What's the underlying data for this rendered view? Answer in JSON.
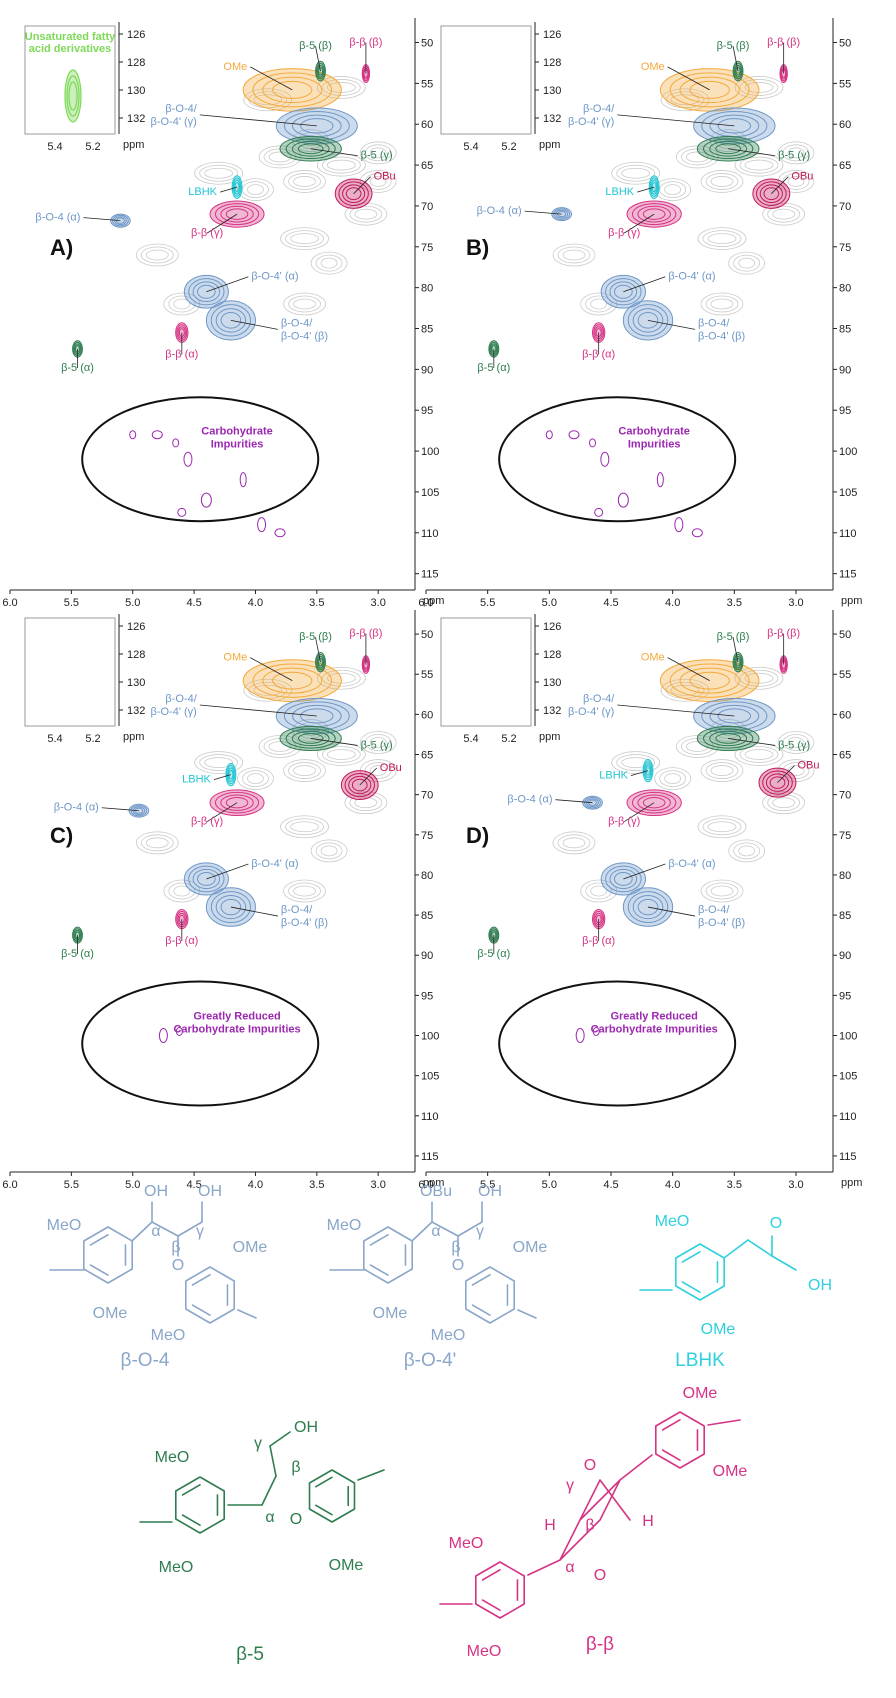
{
  "chart_data": [
    {
      "type": "heatmap",
      "panel_label": "A)",
      "x_axis": {
        "unit": "ppm",
        "ticks": [
          6.0,
          5.5,
          5.0,
          4.5,
          4.0,
          3.5,
          3.0
        ],
        "range": [
          6.0,
          2.7
        ]
      },
      "y_axis": {
        "unit": "",
        "ticks": [
          50,
          55,
          60,
          65,
          70,
          75,
          80,
          85,
          90,
          95,
          100,
          105,
          110,
          115
        ],
        "range": [
          47,
          117
        ]
      },
      "inset": {
        "x_ticks": [
          5.4,
          5.2
        ],
        "x_unit": "ppm",
        "y_ticks": [
          126,
          128,
          130,
          132
        ],
        "label": "Unsaturated fatty acid derivatives"
      },
      "region_label": "Carbohydrate Impurities",
      "annotations": [
        {
          "label": "OMe",
          "color": "#f4a93a",
          "x": 3.7,
          "y": 55.8
        },
        {
          "label": "β-5 (β)",
          "color": "#2e7d4f",
          "x": 3.47,
          "y": 53.5
        },
        {
          "label": "β-β (β)",
          "color": "#d63384",
          "x": 3.1,
          "y": 53.8
        },
        {
          "label": "β-O-4/ β-O-4' (γ)",
          "color": "#6e97c8",
          "x": 3.5,
          "y": 60.2
        },
        {
          "label": "β-5 (γ)",
          "color": "#2e7d4f",
          "x": 3.55,
          "y": 63.0
        },
        {
          "label": "LBHK",
          "color": "#22c6d3",
          "x": 4.15,
          "y": 67.7
        },
        {
          "label": "OBu",
          "color": "#c2185b",
          "x": 3.2,
          "y": 68.5
        },
        {
          "label": "β-O-4 (α)",
          "color": "#6e97c8",
          "x": 5.1,
          "y": 71.8
        },
        {
          "label": "β-β (γ)",
          "color": "#d63384",
          "x": 4.15,
          "y": 71.0
        },
        {
          "label": "β-O-4' (α)",
          "color": "#6e97c8",
          "x": 4.4,
          "y": 80.5
        },
        {
          "label": "β-O-4/ β-O-4' (β)",
          "color": "#6e97c8",
          "x": 4.2,
          "y": 84.0
        },
        {
          "label": "β-β (α)",
          "color": "#d63384",
          "x": 4.6,
          "y": 85.5
        },
        {
          "label": "β-5 (α)",
          "color": "#2e7d4f",
          "x": 5.45,
          "y": 87.5
        }
      ]
    },
    {
      "type": "heatmap",
      "panel_label": "B)",
      "x_axis": {
        "unit": "ppm",
        "ticks": [
          6.0,
          5.5,
          5.0,
          4.5,
          4.0,
          3.5,
          3.0
        ],
        "range": [
          6.0,
          2.7
        ]
      },
      "y_axis": {
        "unit": "",
        "ticks": [
          50,
          55,
          60,
          65,
          70,
          75,
          80,
          85,
          90,
          95,
          100,
          105,
          110,
          115
        ],
        "range": [
          47,
          117
        ]
      },
      "inset": {
        "x_ticks": [
          5.4,
          5.2
        ],
        "x_unit": "ppm",
        "y_ticks": [
          126,
          128,
          130,
          132
        ],
        "label": ""
      },
      "region_label": "Carbohydrate Impurities",
      "annotations": [
        {
          "label": "OMe",
          "color": "#f4a93a",
          "x": 3.7,
          "y": 55.8
        },
        {
          "label": "β-5 (β)",
          "color": "#2e7d4f",
          "x": 3.47,
          "y": 53.5
        },
        {
          "label": "β-β (β)",
          "color": "#d63384",
          "x": 3.1,
          "y": 53.8
        },
        {
          "label": "β-O-4/ β-O-4' (γ)",
          "color": "#6e97c8",
          "x": 3.5,
          "y": 60.2
        },
        {
          "label": "β-5 (γ)",
          "color": "#2e7d4f",
          "x": 3.55,
          "y": 63.0
        },
        {
          "label": "LBHK",
          "color": "#22c6d3",
          "x": 4.15,
          "y": 67.7
        },
        {
          "label": "OBu",
          "color": "#c2185b",
          "x": 3.2,
          "y": 68.5
        },
        {
          "label": "β-O-4 (α)",
          "color": "#6e97c8",
          "x": 4.9,
          "y": 71.0
        },
        {
          "label": "β-β (γ)",
          "color": "#d63384",
          "x": 4.15,
          "y": 71.0
        },
        {
          "label": "β-O-4' (α)",
          "color": "#6e97c8",
          "x": 4.4,
          "y": 80.5
        },
        {
          "label": "β-O-4/ β-O-4' (β)",
          "color": "#6e97c8",
          "x": 4.2,
          "y": 84.0
        },
        {
          "label": "β-β (α)",
          "color": "#d63384",
          "x": 4.6,
          "y": 85.5
        },
        {
          "label": "β-5 (α)",
          "color": "#2e7d4f",
          "x": 5.45,
          "y": 87.5
        }
      ]
    },
    {
      "type": "heatmap",
      "panel_label": "C)",
      "x_axis": {
        "unit": "ppm",
        "ticks": [
          6.0,
          5.5,
          5.0,
          4.5,
          4.0,
          3.5,
          3.0
        ],
        "range": [
          6.0,
          2.7
        ]
      },
      "y_axis": {
        "unit": "",
        "ticks": [
          50,
          55,
          60,
          65,
          70,
          75,
          80,
          85,
          90,
          95,
          100,
          105,
          110,
          115
        ],
        "range": [
          47,
          117
        ]
      },
      "inset": {
        "x_ticks": [
          5.4,
          5.2
        ],
        "x_unit": "ppm",
        "y_ticks": [
          126,
          128,
          130,
          132
        ],
        "label": ""
      },
      "region_label": "Greatly Reduced Carbohydrate Impurities",
      "annotations": [
        {
          "label": "OMe",
          "color": "#f4a93a",
          "x": 3.7,
          "y": 55.8
        },
        {
          "label": "β-5 (β)",
          "color": "#2e7d4f",
          "x": 3.47,
          "y": 53.5
        },
        {
          "label": "β-β (β)",
          "color": "#d63384",
          "x": 3.1,
          "y": 53.8
        },
        {
          "label": "β-O-4/ β-O-4' (γ)",
          "color": "#6e97c8",
          "x": 3.5,
          "y": 60.2
        },
        {
          "label": "β-5 (γ)",
          "color": "#2e7d4f",
          "x": 3.55,
          "y": 63.0
        },
        {
          "label": "LBHK",
          "color": "#22c6d3",
          "x": 4.2,
          "y": 67.5
        },
        {
          "label": "OBu",
          "color": "#c2185b",
          "x": 3.15,
          "y": 68.8
        },
        {
          "label": "β-O-4 (α)",
          "color": "#6e97c8",
          "x": 4.95,
          "y": 72.0
        },
        {
          "label": "β-β (γ)",
          "color": "#d63384",
          "x": 4.15,
          "y": 71.0
        },
        {
          "label": "β-O-4' (α)",
          "color": "#6e97c8",
          "x": 4.4,
          "y": 80.5
        },
        {
          "label": "β-O-4/ β-O-4' (β)",
          "color": "#6e97c8",
          "x": 4.2,
          "y": 84.0
        },
        {
          "label": "β-β (α)",
          "color": "#d63384",
          "x": 4.6,
          "y": 85.5
        },
        {
          "label": "β-5 (α)",
          "color": "#2e7d4f",
          "x": 5.45,
          "y": 87.5
        }
      ]
    },
    {
      "type": "heatmap",
      "panel_label": "D)",
      "x_axis": {
        "unit": "ppm",
        "ticks": [
          6.0,
          5.5,
          5.0,
          4.5,
          4.0,
          3.5,
          3.0
        ],
        "range": [
          6.0,
          2.7
        ]
      },
      "y_axis": {
        "unit": "",
        "ticks": [
          50,
          55,
          60,
          65,
          70,
          75,
          80,
          85,
          90,
          95,
          100,
          105,
          110,
          115
        ],
        "range": [
          47,
          117
        ]
      },
      "inset": {
        "x_ticks": [
          5.4,
          5.2
        ],
        "x_unit": "ppm",
        "y_ticks": [
          126,
          128,
          130,
          132
        ],
        "label": ""
      },
      "region_label": "Greatly Reduced Carbohydrate Impurities",
      "annotations": [
        {
          "label": "OMe",
          "color": "#f4a93a",
          "x": 3.7,
          "y": 55.8
        },
        {
          "label": "β-5 (β)",
          "color": "#2e7d4f",
          "x": 3.47,
          "y": 53.5
        },
        {
          "label": "β-β (β)",
          "color": "#d63384",
          "x": 3.1,
          "y": 53.8
        },
        {
          "label": "β-O-4/ β-O-4' (γ)",
          "color": "#6e97c8",
          "x": 3.5,
          "y": 60.2
        },
        {
          "label": "β-5 (γ)",
          "color": "#2e7d4f",
          "x": 3.55,
          "y": 63.0
        },
        {
          "label": "LBHK",
          "color": "#22c6d3",
          "x": 4.2,
          "y": 67.0
        },
        {
          "label": "OBu",
          "color": "#c2185b",
          "x": 3.15,
          "y": 68.5
        },
        {
          "label": "β-O-4 (α)",
          "color": "#6e97c8",
          "x": 4.65,
          "y": 71.0
        },
        {
          "label": "β-β (γ)",
          "color": "#d63384",
          "x": 4.15,
          "y": 71.0
        },
        {
          "label": "β-O-4' (α)",
          "color": "#6e97c8",
          "x": 4.4,
          "y": 80.5
        },
        {
          "label": "β-O-4/ β-O-4' (β)",
          "color": "#6e97c8",
          "x": 4.2,
          "y": 84.0
        },
        {
          "label": "β-β (α)",
          "color": "#d63384",
          "x": 4.6,
          "y": 85.5
        },
        {
          "label": "β-5 (α)",
          "color": "#2e7d4f",
          "x": 5.45,
          "y": 87.5
        }
      ]
    }
  ],
  "structures": [
    {
      "name": "β-O-4",
      "color": "#8aa6c8"
    },
    {
      "name": "β-O-4'",
      "color": "#8aa6c8"
    },
    {
      "name": "LBHK",
      "color": "#2fd0dc"
    },
    {
      "name": "β-5",
      "color": "#2e7d4f"
    },
    {
      "name": "β-β",
      "color": "#d63384"
    }
  ],
  "structure_text": {
    "meo": "MeO",
    "ome": "OMe",
    "oh": "OH",
    "obu": "OBu",
    "o": "O",
    "h": "H",
    "alpha": "α",
    "beta": "β",
    "gamma": "γ"
  },
  "colors": {
    "background_contours": "#bdbdbd",
    "carbohydrate": "#9c27b0",
    "unsaturated": "#7ed957"
  }
}
